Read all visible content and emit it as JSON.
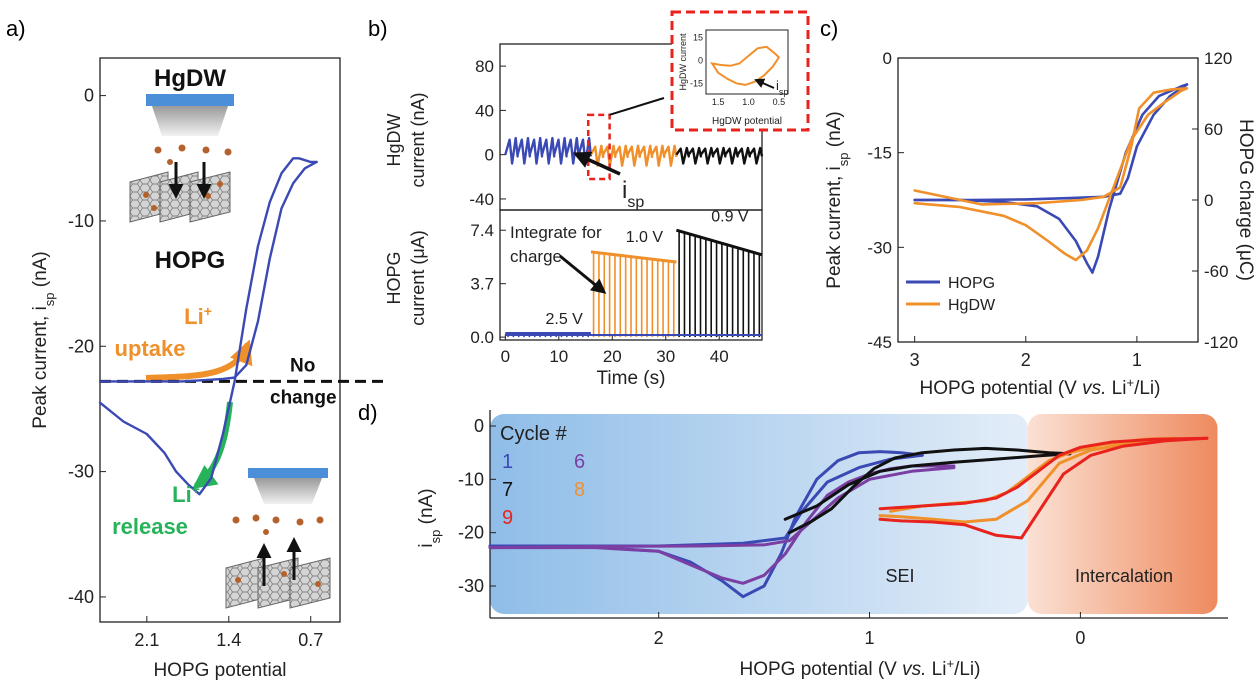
{
  "panel_labels": {
    "a": "a)",
    "b": "b)",
    "c": "c)",
    "d": "d)"
  },
  "colors": {
    "blue": "#3b49b5",
    "orange": "#f0902a",
    "black": "#111111",
    "red": "#e8231e",
    "purple": "#7b3fa3",
    "green": "#27b35a",
    "gray": "#8a8a8a",
    "tip_blue": "#4a8fd8",
    "electrode_brown": "#b5612c",
    "sei_bg": "#bcd6f0",
    "intercalation_bg": "#f3a27c"
  },
  "chart_data": [
    {
      "id": "a",
      "type": "line",
      "xlabel": "HOPG potential",
      "ylabel_main": "Peak current, i",
      "ylabel_sub": "sp",
      "ylabel_unit": " (nA)",
      "x_ticks": [
        "2.1",
        "1.4",
        "0.7"
      ],
      "x_tick_values": [
        2.1,
        1.4,
        0.7
      ],
      "y_ticks": [
        "0",
        "-10",
        "-20",
        "-30",
        "-40"
      ],
      "y_tick_values": [
        0,
        -10,
        -20,
        -30,
        -40
      ],
      "xlim": [
        2.5,
        0.45
      ],
      "ylim": [
        -42,
        3
      ],
      "series": [
        {
          "color": "blue",
          "x": [
            2.5,
            2.3,
            2.1,
            1.95,
            1.85,
            1.75,
            1.65,
            1.55,
            1.45,
            1.35,
            1.25,
            1.15,
            1.05,
            0.95,
            0.85,
            0.8,
            0.7,
            0.65
          ],
          "y": [
            -24.5,
            -26.0,
            -27.0,
            -28.5,
            -30.0,
            -31.0,
            -31.8,
            -30.5,
            -27.0,
            -22.8,
            -17.0,
            -12.0,
            -8.5,
            -6.2,
            -5.0,
            -5.0,
            -5.3,
            -5.3
          ]
        },
        {
          "color": "blue",
          "x": [
            0.65,
            0.75,
            0.85,
            0.95,
            1.05,
            1.15,
            1.25,
            1.35,
            1.45,
            1.6,
            1.8,
            2.1,
            2.5
          ],
          "y": [
            -5.3,
            -5.8,
            -7.0,
            -9.0,
            -13.0,
            -18.0,
            -21.5,
            -22.5,
            -22.6,
            -22.7,
            -22.8,
            -22.8,
            -22.8
          ]
        }
      ],
      "baseline": {
        "y": -22.8,
        "label_line1": "No",
        "label_line2": "change"
      },
      "annotations": {
        "top_tip": "HgDW",
        "electrode": "HOPG",
        "uptake_ion": "Li",
        "uptake_sup": "+",
        "uptake_word": "uptake",
        "release_ion": "Li",
        "release_sup": "+",
        "release_word": "release"
      }
    },
    {
      "id": "b-top",
      "type": "line",
      "ylabel_line1": "HgDW",
      "ylabel_line2": "current (nA)",
      "y_ticks": [
        "80",
        "40",
        "0",
        "-40"
      ],
      "y_tick_values": [
        80,
        40,
        0,
        -40
      ],
      "ylim": [
        -50,
        100
      ],
      "xlim": [
        -1,
        48
      ],
      "segments": [
        {
          "color": "blue",
          "x_start": 0,
          "x_end": 16,
          "cycles": 7,
          "min": -8,
          "max": 15
        },
        {
          "color": "orange",
          "x_start": 16,
          "x_end": 32,
          "cycles": 7,
          "min": -10,
          "max": 8
        },
        {
          "color": "black",
          "x_start": 32,
          "x_end": 48,
          "cycles": 7,
          "min": -8,
          "max": 6
        }
      ],
      "arrow_label": "i",
      "arrow_label_sub": "sp"
    },
    {
      "id": "b-inset",
      "type": "line",
      "ylabel": "HgDW current",
      "xlabel": "HgDW potential",
      "x_ticks": [
        "1.5",
        "1.0",
        "0.5"
      ],
      "x_tick_values": [
        1.5,
        1.0,
        0.5
      ],
      "y_ticks": [
        "15",
        "0",
        "-15"
      ],
      "y_tick_values": [
        15,
        0,
        -15
      ],
      "xlim": [
        1.7,
        0.35
      ],
      "ylim": [
        -22,
        20
      ],
      "series": [
        {
          "color": "orange",
          "x": [
            1.6,
            1.45,
            1.3,
            1.15,
            1.0,
            0.85,
            0.7,
            0.55,
            0.5,
            0.6,
            0.75,
            0.9,
            1.05,
            1.2,
            1.35,
            1.5,
            1.6
          ],
          "y": [
            -2,
            -3,
            -3.5,
            -2,
            3,
            8,
            9,
            4,
            2,
            -4,
            -10,
            -14,
            -16,
            -15,
            -12,
            -8,
            -2
          ]
        }
      ],
      "label": "i",
      "label_sub": "sp"
    },
    {
      "id": "b-bottom",
      "type": "bar",
      "ylabel_line1": "HOPG",
      "ylabel_line2": "current (μA)",
      "xlabel": "Time (s)",
      "x_ticks": [
        "0",
        "10",
        "20",
        "30",
        "40"
      ],
      "x_tick_values": [
        0,
        10,
        20,
        30,
        40
      ],
      "y_ticks": [
        "7.4",
        "3.7",
        "0.0"
      ],
      "y_tick_values": [
        7.4,
        3.7,
        0.0
      ],
      "ylim": [
        -0.2,
        8.8
      ],
      "xlim": [
        -1,
        48
      ],
      "segments": [
        {
          "color": "blue",
          "x_start": 0,
          "x_end": 16,
          "level_start": 0.25,
          "level_end": 0.25,
          "label": "2.5 V"
        },
        {
          "color": "orange",
          "x_start": 16,
          "x_end": 32,
          "level_start": 5.9,
          "level_end": 5.2,
          "label": "1.0 V"
        },
        {
          "color": "black",
          "x_start": 32,
          "x_end": 48,
          "level_start": 7.4,
          "level_end": 5.7,
          "label": "0.9 V"
        }
      ],
      "annotation_line1": "Integrate for",
      "annotation_line2": "charge"
    },
    {
      "id": "c",
      "type": "line",
      "xlabel_pre": "HOPG potential (V ",
      "xlabel_vs": "vs.",
      "xlabel_post": " Li",
      "xlabel_sup": "+",
      "xlabel_end": "/Li)",
      "ylabel_main": "Peak current, i",
      "ylabel_sub": "sp",
      "ylabel_unit": " (nA)",
      "y2label": "HOPG charge (μC)",
      "x_ticks": [
        "3",
        "2",
        "1"
      ],
      "x_tick_values": [
        3,
        2,
        1
      ],
      "y_ticks": [
        "0",
        "-15",
        "-30",
        "-45"
      ],
      "y_tick_values": [
        0,
        -15,
        -30,
        -45
      ],
      "y2_ticks": [
        "120",
        "60",
        "0",
        "-60",
        "-120"
      ],
      "y2_tick_values": [
        120,
        60,
        0,
        -60,
        -120
      ],
      "xlim": [
        3.15,
        0.45
      ],
      "ylim": [
        -45,
        0
      ],
      "legend": [
        "HOPG",
        "HgDW"
      ],
      "legend_placement": "bottom-left",
      "series": [
        {
          "name": "HOPG",
          "color": "blue",
          "x": [
            3.0,
            2.6,
            2.2,
            1.9,
            1.7,
            1.55,
            1.45,
            1.4,
            1.35,
            1.25,
            1.1,
            0.95,
            0.8,
            0.6,
            0.55
          ],
          "y": [
            -22.5,
            -22.5,
            -22.8,
            -23.5,
            -25.5,
            -29.0,
            -32.5,
            -34.0,
            -31.5,
            -24.0,
            -15.0,
            -9.0,
            -6.0,
            -4.5,
            -4.2
          ]
        },
        {
          "name": "HOPG",
          "color": "blue",
          "x": [
            0.55,
            0.7,
            0.85,
            1.0,
            1.08,
            1.15,
            1.3,
            1.6,
            2.0,
            2.5,
            3.0
          ],
          "y": [
            -4.2,
            -6.0,
            -9.0,
            -14.0,
            -19.0,
            -21.5,
            -22.0,
            -22.2,
            -22.4,
            -22.5,
            -22.5
          ]
        },
        {
          "name": "HgDW",
          "color": "orange",
          "x": [
            3.0,
            2.6,
            2.2,
            2.0,
            1.8,
            1.65,
            1.55,
            1.45,
            1.35,
            1.2,
            1.05,
            0.9,
            0.75,
            0.6,
            0.55
          ],
          "y": [
            -23.0,
            -23.6,
            -25.0,
            -26.5,
            -29.0,
            -31.0,
            -32.0,
            -30.5,
            -27.0,
            -20.0,
            -13.0,
            -9.0,
            -7.0,
            -5.2,
            -4.8
          ]
        },
        {
          "name": "HgDW",
          "color": "orange",
          "x": [
            0.55,
            0.7,
            0.85,
            0.98,
            1.05,
            1.15,
            1.3,
            1.5,
            1.9,
            2.4,
            3.0
          ],
          "y": [
            -4.8,
            -5.0,
            -5.5,
            -8.0,
            -14.0,
            -20.5,
            -22.0,
            -22.5,
            -23.0,
            -23.2,
            -21.0
          ]
        }
      ]
    },
    {
      "id": "d",
      "type": "line",
      "xlabel_pre": "HOPG potential (V ",
      "xlabel_vs": "vs.",
      "xlabel_post": " Li",
      "xlabel_sup": "+",
      "xlabel_end": "/Li)",
      "ylabel_main": "i",
      "ylabel_sub": "sp",
      "ylabel_unit": " (nA)",
      "x_ticks": [
        "2",
        "1",
        "0"
      ],
      "x_tick_values": [
        2,
        1,
        0
      ],
      "y_ticks": [
        "0",
        "-10",
        "-20",
        "-30"
      ],
      "y_tick_values": [
        0,
        -10,
        -20,
        -30
      ],
      "xlim": [
        2.8,
        -0.7
      ],
      "ylim": [
        -36,
        3
      ],
      "regions": [
        {
          "label": "SEI",
          "x_start": 2.8,
          "x_end": 0.25,
          "color": "sei_bg"
        },
        {
          "label": "Intercalation",
          "x_start": 0.25,
          "x_end": -0.65,
          "color": "intercalation_bg"
        }
      ],
      "legend_title": "Cycle #",
      "legend": [
        {
          "label": "1",
          "color": "blue"
        },
        {
          "label": "6",
          "color": "purple"
        },
        {
          "label": "7",
          "color": "black"
        },
        {
          "label": "8",
          "color": "orange"
        },
        {
          "label": "9",
          "color": "red"
        }
      ],
      "series": [
        {
          "name": "1",
          "color": "blue",
          "x": [
            2.8,
            2.4,
            2.0,
            1.85,
            1.7,
            1.6,
            1.5,
            1.42,
            1.35,
            1.25,
            1.15,
            1.05,
            0.95,
            0.85,
            0.75
          ],
          "y": [
            -22.5,
            -22.5,
            -23.5,
            -25.5,
            -29.0,
            -32.0,
            -30.0,
            -24.0,
            -17.0,
            -10.0,
            -6.5,
            -5.0,
            -4.8,
            -5.0,
            -5.5
          ]
        },
        {
          "name": "1",
          "color": "blue",
          "x": [
            0.75,
            0.9,
            1.05,
            1.2,
            1.32,
            1.4,
            1.6,
            2.0,
            2.8
          ],
          "y": [
            -5.5,
            -6.2,
            -7.8,
            -10.5,
            -16.0,
            -21.0,
            -22.0,
            -22.5,
            -22.5
          ]
        },
        {
          "name": "6",
          "color": "purple",
          "x": [
            2.8,
            2.3,
            2.0,
            1.85,
            1.7,
            1.6,
            1.5,
            1.4,
            1.3,
            1.2,
            1.1,
            1.0,
            0.9,
            0.8,
            0.6
          ],
          "y": [
            -22.8,
            -22.8,
            -23.5,
            -26.0,
            -28.5,
            -29.5,
            -28.0,
            -24.0,
            -18.0,
            -13.0,
            -10.5,
            -9.0,
            -8.0,
            -7.5,
            -7.5
          ]
        },
        {
          "name": "6",
          "color": "purple",
          "x": [
            0.6,
            0.8,
            1.0,
            1.15,
            1.28,
            1.38,
            1.5,
            1.8,
            2.3,
            2.8
          ],
          "y": [
            -7.8,
            -8.5,
            -10.0,
            -13.5,
            -18.0,
            -21.5,
            -22.3,
            -22.5,
            -22.6,
            -22.8
          ]
        },
        {
          "name": "7",
          "color": "black",
          "x": [
            1.38,
            1.28,
            1.18,
            1.08,
            0.98,
            0.88,
            0.75,
            0.6,
            0.45,
            0.3,
            0.15,
            0.05
          ],
          "y": [
            -20.0,
            -18.0,
            -15.5,
            -11.5,
            -8.0,
            -6.0,
            -5.0,
            -4.5,
            -4.2,
            -4.5,
            -5.0,
            -5.2
          ]
        },
        {
          "name": "7",
          "color": "black",
          "x": [
            0.05,
            0.2,
            0.4,
            0.6,
            0.8,
            0.95,
            1.1,
            1.25,
            1.4
          ],
          "y": [
            -5.2,
            -5.6,
            -6.2,
            -6.8,
            -7.5,
            -8.5,
            -11.0,
            -15.0,
            -17.5
          ]
        },
        {
          "name": "8",
          "color": "orange",
          "x": [
            0.9,
            0.75,
            0.6,
            0.45,
            0.35,
            0.25,
            0.15,
            0.05,
            -0.1,
            -0.3,
            -0.45
          ],
          "y": [
            -16.0,
            -15.0,
            -14.5,
            -14.0,
            -12.5,
            -9.5,
            -6.5,
            -5.0,
            -3.5,
            -2.5,
            -2.3
          ]
        },
        {
          "name": "8",
          "color": "orange",
          "x": [
            -0.45,
            -0.25,
            -0.05,
            0.1,
            0.25,
            0.4,
            0.55,
            0.7,
            0.85,
            0.95
          ],
          "y": [
            -2.4,
            -3.2,
            -4.5,
            -7.0,
            -14.0,
            -17.5,
            -18.0,
            -17.5,
            -17.0,
            -16.8
          ]
        },
        {
          "name": "9",
          "color": "red",
          "x": [
            0.95,
            0.75,
            0.55,
            0.4,
            0.3,
            0.2,
            0.1,
            0.0,
            -0.15,
            -0.35,
            -0.6
          ],
          "y": [
            -15.5,
            -15.0,
            -14.5,
            -13.5,
            -11.5,
            -8.5,
            -5.5,
            -4.0,
            -3.0,
            -2.5,
            -2.3
          ]
        },
        {
          "name": "9",
          "color": "red",
          "x": [
            -0.6,
            -0.4,
            -0.2,
            -0.05,
            0.08,
            0.18,
            0.28,
            0.4,
            0.55,
            0.7,
            0.85,
            0.95
          ],
          "y": [
            -2.3,
            -2.8,
            -3.8,
            -5.5,
            -9.0,
            -15.0,
            -21.0,
            -20.5,
            -18.5,
            -18.0,
            -17.8,
            -17.5
          ]
        }
      ]
    }
  ]
}
